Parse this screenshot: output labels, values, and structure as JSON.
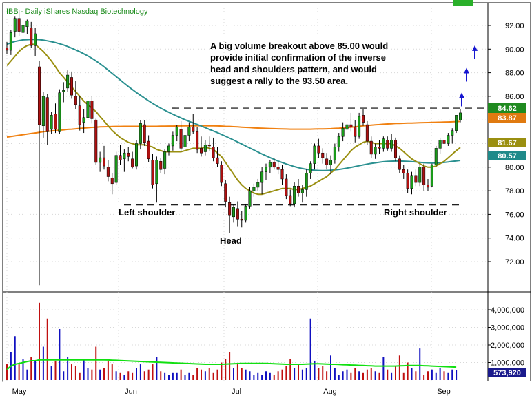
{
  "chart_data": {
    "type": "candlestick",
    "title": "IBB - Daily  iShares Nasdaq Biotechnology",
    "annotation": [
      "A big volume breakout above 85.00 would",
      "provide initial confirmation of the inverse",
      "head and shoulders pattern, and would",
      "suggest a rally to the 93.50 area."
    ],
    "labels": {
      "left_shoulder": "Left shoulder",
      "head": "Head",
      "right_shoulder": "Right shoulder"
    },
    "price_axis": {
      "ticks": [
        "92.00",
        "90.00",
        "88.00",
        "86.00",
        "84.00",
        "82.00",
        "80.00",
        "78.00",
        "76.00",
        "74.00",
        "72.00"
      ],
      "ylim": [
        69.9,
        93.9
      ]
    },
    "volume_axis": {
      "ticks": [
        "4,000,000",
        "3,000,000",
        "2,000,000",
        "1,000,000"
      ],
      "ylim": [
        0,
        4600000
      ]
    },
    "x_ticks": [
      "May",
      "Jun",
      "Jul",
      "Aug",
      "Sep"
    ],
    "tags": [
      {
        "text": "84.62",
        "color": "#1f8a1f"
      },
      {
        "text": "83.87",
        "color": "#e07a10"
      },
      {
        "text": "81.67",
        "color": "#9a8f10"
      },
      {
        "text": "80.57",
        "color": "#1f8a8a"
      },
      {
        "text": "573,920",
        "color": "#1a1a8c"
      }
    ],
    "horizontal_levels": [
      85.0,
      76.8
    ],
    "target_arrows": [
      86.2,
      88.3,
      90.2
    ],
    "series_colors": {
      "up": "#1a9a1a",
      "down": "#b01010",
      "ma200": "#f08010",
      "ma50": "#2a9090",
      "ma20": "#9a8f10",
      "vol_up": "#1010c0",
      "vol_down": "#c01010",
      "vol_ma": "#10e010"
    },
    "candles": [
      [
        90.1,
        90.6,
        89.6,
        89.9
      ],
      [
        89.9,
        91.6,
        89.5,
        91.4
      ],
      [
        91.5,
        92.8,
        91.0,
        92.6
      ],
      [
        92.6,
        93.3,
        91.1,
        91.5
      ],
      [
        91.4,
        92.4,
        90.6,
        92.0
      ],
      [
        91.9,
        92.5,
        91.3,
        92.4
      ],
      [
        91.8,
        92.3,
        90.1,
        90.3
      ],
      [
        90.3,
        91.8,
        89.4,
        91.3
      ],
      [
        88.5,
        89.0,
        70.0,
        83.6
      ],
      [
        83.5,
        86.4,
        82.5,
        86.0
      ],
      [
        85.9,
        86.2,
        81.9,
        83.0
      ],
      [
        83.2,
        84.7,
        82.8,
        84.4
      ],
      [
        84.5,
        85.4,
        82.9,
        83.2
      ],
      [
        83.0,
        86.6,
        82.8,
        86.3
      ],
      [
        86.4,
        87.2,
        85.5,
        86.5
      ],
      [
        86.7,
        88.2,
        86.4,
        87.8
      ],
      [
        87.6,
        88.1,
        85.8,
        86.1
      ],
      [
        86.0,
        87.3,
        84.9,
        85.3
      ],
      [
        85.2,
        86.0,
        83.1,
        83.6
      ],
      [
        83.8,
        84.9,
        82.9,
        84.2
      ],
      [
        84.2,
        86.1,
        84.0,
        85.6
      ],
      [
        85.6,
        86.0,
        83.7,
        84.1
      ],
      [
        84.0,
        84.1,
        80.2,
        80.4
      ],
      [
        80.4,
        81.3,
        79.6,
        80.8
      ],
      [
        80.8,
        81.8,
        79.8,
        80.1
      ],
      [
        80.0,
        80.6,
        78.8,
        79.2
      ],
      [
        79.1,
        79.5,
        77.7,
        78.6
      ],
      [
        78.7,
        81.3,
        78.5,
        81.0
      ],
      [
        81.0,
        81.9,
        80.2,
        80.6
      ],
      [
        80.7,
        81.5,
        79.6,
        81.2
      ],
      [
        81.2,
        81.7,
        80.5,
        80.9
      ],
      [
        80.7,
        81.3,
        79.9,
        80.0
      ],
      [
        80.1,
        82.3,
        79.8,
        82.0
      ],
      [
        82.0,
        84.0,
        81.5,
        83.7
      ],
      [
        83.6,
        84.0,
        81.8,
        82.1
      ],
      [
        82.2,
        82.7,
        80.4,
        80.7
      ],
      [
        80.6,
        81.1,
        78.2,
        78.5
      ],
      [
        78.6,
        80.9,
        77.0,
        80.6
      ],
      [
        80.5,
        80.8,
        79.5,
        79.8
      ],
      [
        79.9,
        81.5,
        79.4,
        81.3
      ],
      [
        81.3,
        82.0,
        81.0,
        81.8
      ],
      [
        81.8,
        83.0,
        81.4,
        82.7
      ],
      [
        82.7,
        83.6,
        82.2,
        83.4
      ],
      [
        83.2,
        83.9,
        81.3,
        81.6
      ],
      [
        81.7,
        83.2,
        81.4,
        82.7
      ],
      [
        82.7,
        83.8,
        82.2,
        83.4
      ],
      [
        83.4,
        84.5,
        82.8,
        83.0
      ],
      [
        83.0,
        83.4,
        81.2,
        81.5
      ],
      [
        81.6,
        82.6,
        80.9,
        81.2
      ],
      [
        81.3,
        82.3,
        81.0,
        81.9
      ],
      [
        81.9,
        82.6,
        81.4,
        81.8
      ],
      [
        81.7,
        82.5,
        80.5,
        80.8
      ],
      [
        80.8,
        81.7,
        80.0,
        80.3
      ],
      [
        80.2,
        80.5,
        78.4,
        78.7
      ],
      [
        78.6,
        78.9,
        76.6,
        77.1
      ],
      [
        77.0,
        77.5,
        74.4,
        75.9
      ],
      [
        75.8,
        76.9,
        75.3,
        76.6
      ],
      [
        76.5,
        77.1,
        75.0,
        75.6
      ],
      [
        75.6,
        76.3,
        74.9,
        75.5
      ],
      [
        75.5,
        76.9,
        75.3,
        76.7
      ],
      [
        76.7,
        78.3,
        76.5,
        78.0
      ],
      [
        78.0,
        78.6,
        77.5,
        78.3
      ],
      [
        78.3,
        79.0,
        78.0,
        78.7
      ],
      [
        78.7,
        80.0,
        77.7,
        79.6
      ],
      [
        79.6,
        80.3,
        78.9,
        80.0
      ],
      [
        80.0,
        80.6,
        79.5,
        80.4
      ],
      [
        80.4,
        80.8,
        79.8,
        80.0
      ],
      [
        80.0,
        80.5,
        79.4,
        79.8
      ],
      [
        79.8,
        80.2,
        78.5,
        79.0
      ],
      [
        79.0,
        79.4,
        77.3,
        77.6
      ],
      [
        77.6,
        78.1,
        76.7,
        76.9
      ],
      [
        76.9,
        78.7,
        76.6,
        78.4
      ],
      [
        78.4,
        79.0,
        77.5,
        77.8
      ],
      [
        77.8,
        78.5,
        77.0,
        78.1
      ],
      [
        78.1,
        79.8,
        77.5,
        79.5
      ],
      [
        79.5,
        80.5,
        79.0,
        80.3
      ],
      [
        80.3,
        82.0,
        79.8,
        81.8
      ],
      [
        81.8,
        82.4,
        80.8,
        81.2
      ],
      [
        81.2,
        81.6,
        80.3,
        80.8
      ],
      [
        80.7,
        81.2,
        79.8,
        80.2
      ],
      [
        80.2,
        81.0,
        79.4,
        80.6
      ],
      [
        80.6,
        82.0,
        80.3,
        81.7
      ],
      [
        81.7,
        82.9,
        81.3,
        82.6
      ],
      [
        82.6,
        83.8,
        82.2,
        83.3
      ],
      [
        83.2,
        84.4,
        82.9,
        83.6
      ],
      [
        83.6,
        84.6,
        83.0,
        83.4
      ],
      [
        83.4,
        84.0,
        82.1,
        82.6
      ],
      [
        82.6,
        84.6,
        82.4,
        84.3
      ],
      [
        84.4,
        84.9,
        83.5,
        83.8
      ],
      [
        83.6,
        83.9,
        81.9,
        82.2
      ],
      [
        82.2,
        82.6,
        80.8,
        81.1
      ],
      [
        81.1,
        82.0,
        80.7,
        81.7
      ],
      [
        81.7,
        82.3,
        81.1,
        81.6
      ],
      [
        81.6,
        82.6,
        81.3,
        82.4
      ],
      [
        82.3,
        82.6,
        81.4,
        81.6
      ],
      [
        81.6,
        82.8,
        81.3,
        82.3
      ],
      [
        82.3,
        82.5,
        80.5,
        80.8
      ],
      [
        80.7,
        81.0,
        79.5,
        79.8
      ],
      [
        79.8,
        80.2,
        79.0,
        79.5
      ],
      [
        79.5,
        79.8,
        77.8,
        78.2
      ],
      [
        78.2,
        79.6,
        77.7,
        79.3
      ],
      [
        79.3,
        79.8,
        78.4,
        78.7
      ],
      [
        78.7,
        80.3,
        78.4,
        80.0
      ],
      [
        80.0,
        80.3,
        78.0,
        78.5
      ],
      [
        78.5,
        79.0,
        78.0,
        78.3
      ],
      [
        78.4,
        80.3,
        78.3,
        80.2
      ],
      [
        80.2,
        81.8,
        80.0,
        81.6
      ],
      [
        81.6,
        82.5,
        81.1,
        82.3
      ],
      [
        82.3,
        82.6,
        81.9,
        82.0
      ],
      [
        82.0,
        82.9,
        81.8,
        82.7
      ],
      [
        82.7,
        83.3,
        82.0,
        83.1
      ],
      [
        83.1,
        84.4,
        82.9,
        84.4
      ],
      [
        84.0,
        84.9,
        83.8,
        84.6
      ]
    ],
    "ma200": [
      82.55,
      82.6,
      82.65,
      82.7,
      82.75,
      82.8,
      82.85,
      82.9,
      82.95,
      83.0,
      83.03,
      83.06,
      83.1,
      83.13,
      83.16,
      83.2,
      83.22,
      83.25,
      83.28,
      83.31,
      83.34,
      83.37,
      83.39,
      83.41,
      83.42,
      83.43,
      83.44,
      83.45,
      83.45,
      83.46,
      83.46,
      83.46,
      83.46,
      83.46,
      83.46,
      83.46,
      83.46,
      83.46,
      83.47,
      83.47,
      83.48,
      83.48,
      83.49,
      83.49,
      83.5,
      83.5,
      83.5,
      83.51,
      83.51,
      83.51,
      83.5,
      83.5,
      83.49,
      83.48,
      83.46,
      83.45,
      83.43,
      83.41,
      83.39,
      83.37,
      83.35,
      83.33,
      83.31,
      83.3,
      83.28,
      83.27,
      83.26,
      83.25,
      83.24,
      83.23,
      83.22,
      83.22,
      83.22,
      83.22,
      83.22,
      83.22,
      83.23,
      83.24,
      83.24,
      83.25,
      83.26,
      83.28,
      83.3,
      83.33,
      83.36,
      83.39,
      83.42,
      83.46,
      83.5,
      83.53,
      83.56,
      83.59,
      83.61,
      83.64,
      83.66,
      83.68,
      83.7,
      83.71,
      83.72,
      83.73,
      83.74,
      83.75,
      83.76,
      83.77,
      83.78,
      83.79,
      83.8,
      83.81,
      83.82,
      83.83,
      83.84,
      83.86,
      83.87
    ],
    "ma50": [
      90.4,
      90.55,
      90.65,
      90.72,
      90.78,
      90.8,
      90.82,
      90.82,
      90.8,
      90.76,
      90.7,
      90.63,
      90.55,
      90.45,
      90.35,
      90.22,
      90.08,
      89.93,
      89.77,
      89.6,
      89.42,
      89.22,
      89.0,
      88.76,
      88.5,
      88.22,
      87.94,
      87.66,
      87.38,
      87.1,
      86.83,
      86.57,
      86.32,
      86.08,
      85.85,
      85.62,
      85.4,
      85.2,
      85.0,
      84.82,
      84.65,
      84.48,
      84.32,
      84.17,
      84.02,
      83.88,
      83.75,
      83.62,
      83.48,
      83.34,
      83.2,
      83.06,
      82.92,
      82.77,
      82.62,
      82.46,
      82.3,
      82.13,
      81.96,
      81.79,
      81.62,
      81.45,
      81.28,
      81.12,
      80.96,
      80.81,
      80.66,
      80.52,
      80.39,
      80.27,
      80.16,
      80.05,
      79.96,
      79.88,
      79.82,
      79.77,
      79.74,
      79.72,
      79.71,
      79.72,
      79.74,
      79.77,
      79.81,
      79.86,
      79.92,
      79.98,
      80.05,
      80.12,
      80.19,
      80.26,
      80.32,
      80.37,
      80.42,
      80.46,
      80.49,
      80.51,
      80.52,
      80.52,
      80.51,
      80.49,
      80.47,
      80.44,
      80.41,
      80.38,
      80.36,
      80.35,
      80.35,
      80.37,
      80.4,
      80.44,
      80.49,
      80.53,
      80.57
    ],
    "ma20": [
      88.6,
      89.0,
      89.4,
      89.8,
      90.1,
      90.3,
      90.4,
      90.4,
      90.1,
      89.8,
      89.4,
      89.0,
      88.5,
      88.0,
      87.6,
      87.2,
      86.8,
      86.4,
      86.0,
      85.6,
      85.3,
      85.0,
      84.7,
      84.3,
      83.9,
      83.5,
      83.1,
      82.8,
      82.5,
      82.3,
      82.1,
      82.0,
      81.9,
      81.9,
      81.9,
      81.8,
      81.7,
      81.5,
      81.4,
      81.3,
      81.3,
      81.3,
      81.3,
      81.3,
      81.4,
      81.5,
      81.6,
      81.6,
      81.6,
      81.7,
      81.6,
      81.5,
      81.2,
      80.9,
      80.4,
      79.9,
      79.4,
      78.9,
      78.5,
      78.2,
      78.0,
      77.8,
      77.7,
      77.7,
      77.8,
      77.9,
      78.0,
      78.1,
      78.2,
      78.2,
      78.2,
      78.1,
      78.1,
      78.2,
      78.3,
      78.4,
      78.6,
      78.8,
      79.0,
      79.2,
      79.5,
      79.8,
      80.2,
      80.6,
      81.0,
      81.4,
      81.7,
      81.9,
      82.1,
      82.2,
      82.1,
      82.0,
      82.0,
      82.0,
      82.0,
      82.0,
      81.8,
      81.6,
      81.3,
      81.0,
      80.7,
      80.5,
      80.3,
      80.1,
      80.0,
      80.0,
      80.1,
      80.3,
      80.5,
      80.8,
      81.1,
      81.4,
      81.67
    ],
    "volume": [
      900000,
      1600000,
      2500000,
      900000,
      1200000,
      600000,
      1300000,
      1100000,
      4400000,
      1900000,
      3500000,
      800000,
      1100000,
      2900000,
      500000,
      1300000,
      900000,
      800000,
      400000,
      1200000,
      700000,
      600000,
      1900000,
      600000,
      700000,
      1100000,
      900000,
      500000,
      400000,
      300000,
      500000,
      400000,
      700000,
      900000,
      500000,
      600000,
      900000,
      1300000,
      500000,
      400000,
      300000,
      400000,
      400000,
      600000,
      300000,
      400000,
      300000,
      700000,
      600000,
      500000,
      700000,
      400000,
      600000,
      1000000,
      1200000,
      1600000,
      700000,
      900000,
      700000,
      600000,
      500000,
      300000,
      400000,
      300000,
      500000,
      400000,
      300000,
      500000,
      600000,
      800000,
      1200000,
      700000,
      900000,
      600000,
      700000,
      3500000,
      1100000,
      700000,
      800000,
      500000,
      1400000,
      700000,
      300000,
      500000,
      600000,
      400000,
      700000,
      500000,
      400000,
      600000,
      700000,
      500000,
      400000,
      1300000,
      600000,
      400000,
      800000,
      1400000,
      400000,
      1000000,
      700000,
      500000,
      1800000,
      300000,
      500000,
      600000,
      400000,
      700000,
      500000,
      400000,
      600000,
      573920
    ],
    "volume_ma": [
      600000,
      800000,
      900000,
      950000,
      1000000,
      1050000,
      1100000,
      1100000,
      1150000,
      1150000,
      1150000,
      1150000,
      1150000,
      1150000,
      1150000,
      1150000,
      1150000,
      1150000,
      1150000,
      1150000,
      1150000,
      1150000,
      1150000,
      1150000,
      1150000,
      1140000,
      1130000,
      1120000,
      1110000,
      1100000,
      1090000,
      1080000,
      1070000,
      1060000,
      1050000,
      1040000,
      1030000,
      1020000,
      1010000,
      1000000,
      990000,
      980000,
      970000,
      960000,
      950000,
      940000,
      930000,
      920000,
      910000,
      900000,
      900000,
      900000,
      900000,
      900000,
      910000,
      920000,
      930000,
      940000,
      950000,
      950000,
      950000,
      950000,
      950000,
      950000,
      950000,
      940000,
      930000,
      920000,
      910000,
      900000,
      900000,
      900000,
      900000,
      900000,
      910000,
      920000,
      930000,
      930000,
      920000,
      910000,
      900000,
      900000,
      890000,
      880000,
      870000,
      860000,
      850000,
      840000,
      830000,
      820000,
      810000,
      800000,
      800000,
      800000,
      800000,
      800000,
      800000,
      810000,
      820000,
      830000,
      830000,
      830000,
      830000,
      820000,
      810000,
      800000,
      790000,
      780000,
      770000,
      760000,
      750000,
      740000
    ]
  }
}
